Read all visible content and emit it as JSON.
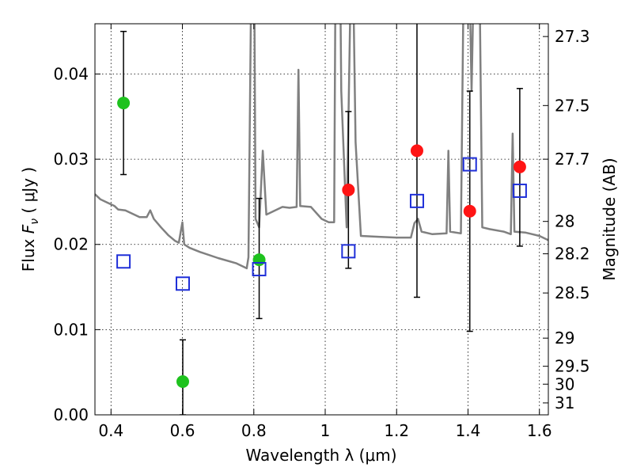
{
  "chart_data": {
    "type": "scatter",
    "xlabel": "Wavelength  λ (μm)",
    "ylabel": "Flux  F_ν  ( μJy )",
    "y2label": "Magnitude (AB)",
    "xlim": [
      0.355,
      1.625
    ],
    "ylim": [
      0.0,
      0.0459
    ],
    "grid": true,
    "x_ticks": [
      0.4,
      0.6,
      0.8,
      1.0,
      1.2,
      1.4,
      1.6
    ],
    "x_tick_labels": [
      "0.4",
      "0.6",
      "0.8",
      "1",
      "1.2",
      "1.4",
      "1.6"
    ],
    "y_ticks": [
      0.0,
      0.01,
      0.02,
      0.03,
      0.04
    ],
    "y_tick_labels": [
      "0.00",
      "0.01",
      "0.02",
      "0.03",
      "0.04"
    ],
    "y2_ticks": [
      {
        "label": "27.3",
        "flux": 0.0444
      },
      {
        "label": "27.5",
        "flux": 0.0363
      },
      {
        "label": "27.7",
        "flux": 0.03
      },
      {
        "label": "28",
        "flux": 0.0227
      },
      {
        "label": "28.2",
        "flux": 0.0189
      },
      {
        "label": "28.5",
        "flux": 0.0143
      },
      {
        "label": "29",
        "flux": 0.009
      },
      {
        "label": "29.5",
        "flux": 0.0057
      },
      {
        "label": "30",
        "flux": 0.0036
      },
      {
        "label": "31",
        "flux": 0.0014
      }
    ],
    "series": [
      {
        "kind": "model_sed",
        "color": "#808080",
        "points": [
          [
            0.355,
            0.0259
          ],
          [
            0.37,
            0.0253
          ],
          [
            0.39,
            0.0249
          ],
          [
            0.41,
            0.0245
          ],
          [
            0.42,
            0.0241
          ],
          [
            0.44,
            0.024
          ],
          [
            0.46,
            0.0236
          ],
          [
            0.48,
            0.0232
          ],
          [
            0.5,
            0.0232
          ],
          [
            0.51,
            0.024
          ],
          [
            0.52,
            0.023
          ],
          [
            0.54,
            0.022
          ],
          [
            0.56,
            0.0211
          ],
          [
            0.58,
            0.0204
          ],
          [
            0.59,
            0.0202
          ],
          [
            0.6,
            0.0226
          ],
          [
            0.605,
            0.02
          ],
          [
            0.62,
            0.0196
          ],
          [
            0.65,
            0.0191
          ],
          [
            0.7,
            0.0184
          ],
          [
            0.75,
            0.0178
          ],
          [
            0.78,
            0.0172
          ],
          [
            0.785,
            0.0185
          ],
          [
            0.795,
            0.06
          ],
          [
            0.8,
            0.06
          ],
          [
            0.805,
            0.023
          ],
          [
            0.815,
            0.022
          ],
          [
            0.825,
            0.031
          ],
          [
            0.835,
            0.0235
          ],
          [
            0.86,
            0.024
          ],
          [
            0.88,
            0.0244
          ],
          [
            0.9,
            0.0243
          ],
          [
            0.92,
            0.0244
          ],
          [
            0.925,
            0.0405
          ],
          [
            0.93,
            0.0245
          ],
          [
            0.96,
            0.0244
          ],
          [
            0.99,
            0.023
          ],
          [
            1.01,
            0.0226
          ],
          [
            1.025,
            0.0226
          ],
          [
            1.03,
            0.06
          ],
          [
            1.04,
            0.06
          ],
          [
            1.045,
            0.038
          ],
          [
            1.06,
            0.022
          ],
          [
            1.075,
            0.06
          ],
          [
            1.085,
            0.032
          ],
          [
            1.1,
            0.021
          ],
          [
            1.15,
            0.0209
          ],
          [
            1.2,
            0.0208
          ],
          [
            1.24,
            0.0208
          ],
          [
            1.25,
            0.0225
          ],
          [
            1.26,
            0.023
          ],
          [
            1.27,
            0.0215
          ],
          [
            1.3,
            0.0212
          ],
          [
            1.34,
            0.0213
          ],
          [
            1.345,
            0.031
          ],
          [
            1.35,
            0.0215
          ],
          [
            1.38,
            0.0213
          ],
          [
            1.39,
            0.06
          ],
          [
            1.4,
            0.06
          ],
          [
            1.41,
            0.038
          ],
          [
            1.42,
            0.06
          ],
          [
            1.43,
            0.06
          ],
          [
            1.44,
            0.022
          ],
          [
            1.46,
            0.0218
          ],
          [
            1.5,
            0.0215
          ],
          [
            1.52,
            0.0212
          ],
          [
            1.525,
            0.033
          ],
          [
            1.53,
            0.0215
          ],
          [
            1.56,
            0.0214
          ],
          [
            1.58,
            0.0212
          ],
          [
            1.6,
            0.021
          ],
          [
            1.625,
            0.0205
          ]
        ]
      },
      {
        "kind": "green_points",
        "color": "#1ec21e",
        "points": [
          {
            "x": 0.435,
            "y": 0.0366,
            "err_low": 0.0282,
            "err_high": 0.045
          },
          {
            "x": 0.601,
            "y": 0.0039,
            "err_low": 0.0,
            "err_high": 0.0088
          },
          {
            "x": 0.815,
            "y": 0.0182,
            "err_low": 0.0113,
            "err_high": 0.0254
          }
        ]
      },
      {
        "kind": "red_points",
        "color": "#ff1414",
        "points": [
          {
            "x": 1.065,
            "y": 0.0264,
            "err_low": 0.0172,
            "err_high": 0.0356
          },
          {
            "x": 1.257,
            "y": 0.031,
            "err_low": 0.0138,
            "err_high": 0.048
          },
          {
            "x": 1.405,
            "y": 0.0239,
            "err_low": 0.0098,
            "err_high": 0.038
          },
          {
            "x": 1.545,
            "y": 0.0291,
            "err_low": 0.0198,
            "err_high": 0.0383
          }
        ]
      },
      {
        "kind": "model_photometry",
        "color": "#1f2fd8",
        "points": [
          {
            "x": 0.435,
            "y": 0.018
          },
          {
            "x": 0.601,
            "y": 0.0154
          },
          {
            "x": 0.815,
            "y": 0.0171
          },
          {
            "x": 1.065,
            "y": 0.0192
          },
          {
            "x": 1.257,
            "y": 0.0251
          },
          {
            "x": 1.405,
            "y": 0.0294
          },
          {
            "x": 1.545,
            "y": 0.0263
          }
        ]
      }
    ]
  }
}
